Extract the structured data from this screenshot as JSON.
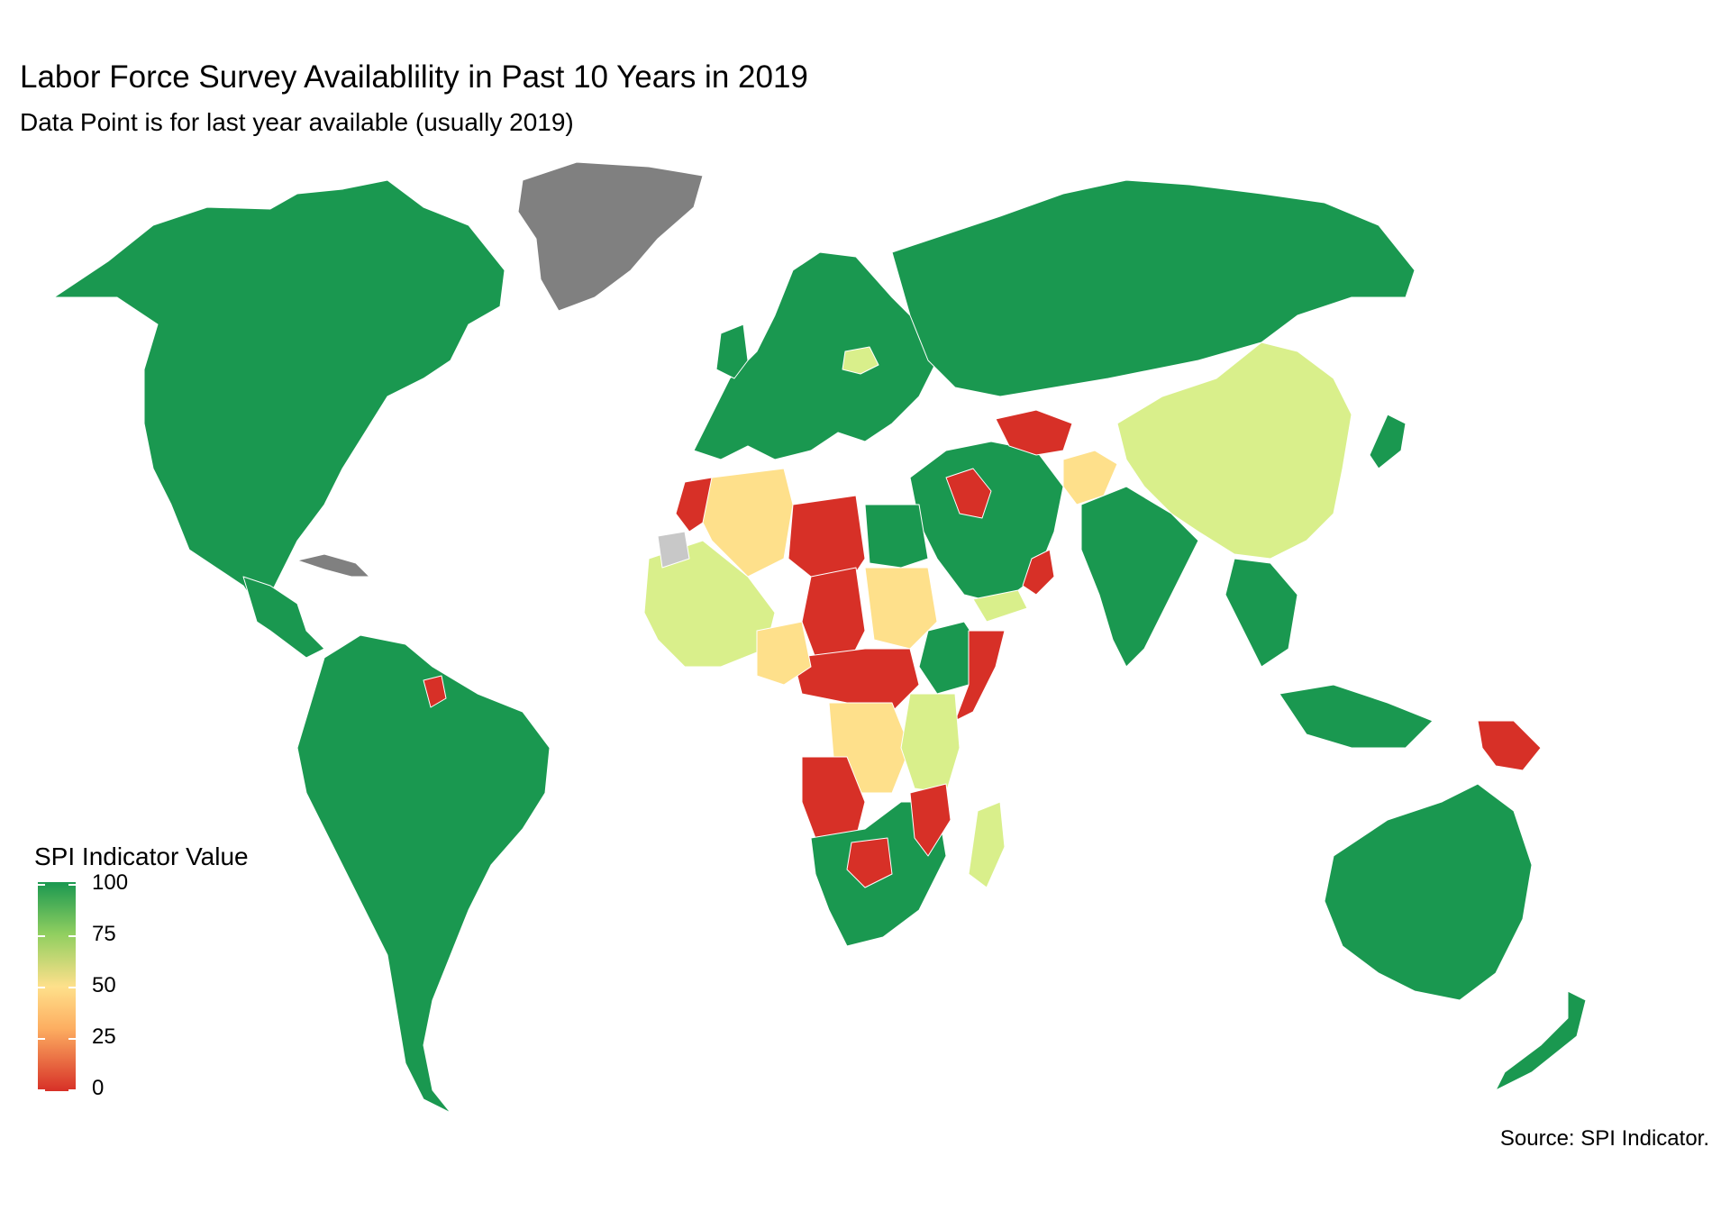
{
  "title": "Labor Force Survey Availablility in Past 10 Years in 2019",
  "subtitle": "Data Point is for last year available (usually 2019)",
  "caption": "Source: SPI Indicator.",
  "legend": {
    "title": "SPI Indicator Value",
    "ticks": [
      "100",
      "75",
      "50",
      "25",
      "0"
    ],
    "range": [
      0,
      100
    ],
    "scale_colors": [
      "#d73027",
      "#fdae61",
      "#fee08b",
      "#91cf60",
      "#1a9850"
    ]
  },
  "colors": {
    "high_100": "#1a9850",
    "mid_75": "#d9ef8b",
    "low_40": "#fee08b",
    "zero_0": "#d73027",
    "no_data": "#808080",
    "missing": "#c8c8c8"
  },
  "regions": [
    {
      "name": "North America",
      "value": 100
    },
    {
      "name": "Greenland",
      "value": null
    },
    {
      "name": "South America",
      "value": 100
    },
    {
      "name": "Europe",
      "value": 100
    },
    {
      "name": "Russia",
      "value": 100
    },
    {
      "name": "China",
      "value": 66
    },
    {
      "name": "India",
      "value": 100
    },
    {
      "name": "Australia",
      "value": 100
    },
    {
      "name": "Libya",
      "value": 0
    },
    {
      "name": "Sudan",
      "value": 33
    },
    {
      "name": "Angola",
      "value": 0
    },
    {
      "name": "DR Congo",
      "value": 33
    },
    {
      "name": "Madagascar",
      "value": 66
    },
    {
      "name": "Papua New Guinea",
      "value": 0
    },
    {
      "name": "Turkmenistan",
      "value": 0
    },
    {
      "name": "Afghanistan",
      "value": 33
    }
  ]
}
